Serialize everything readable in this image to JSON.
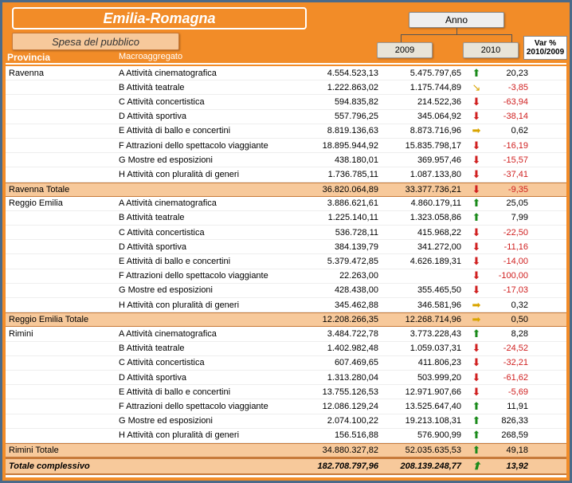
{
  "title": "Emilia-Romagna",
  "subtitle": "Spesa del pubblico",
  "anno_label": "Anno",
  "year1": "2009",
  "year2": "2010",
  "var_hdr1": "Var %",
  "var_hdr2": "2010/2009",
  "hdr_provincia": "Provincia",
  "hdr_macro": "Macroaggregato",
  "colors": {
    "frame_bg": "#f28c28",
    "frame_border": "#4a6a8a",
    "subtotal_bg": "#f7c99b",
    "up": "#1a8a1a",
    "down": "#d02020",
    "flat": "#d9a400"
  },
  "sections": [
    {
      "province": "Ravenna",
      "rows": [
        {
          "macro": "A Attività cinematografica",
          "v1": "4.554.523,13",
          "v2": "5.475.797,65",
          "arrow": "up",
          "var": "20,23"
        },
        {
          "macro": "B Attività teatrale",
          "v1": "1.222.863,02",
          "v2": "1.175.744,89",
          "arrow": "flat-down",
          "var": "-3,85"
        },
        {
          "macro": "C Attività concertistica",
          "v1": "594.835,82",
          "v2": "214.522,36",
          "arrow": "down",
          "var": "-63,94"
        },
        {
          "macro": "D Attività sportiva",
          "v1": "557.796,25",
          "v2": "345.064,92",
          "arrow": "down",
          "var": "-38,14"
        },
        {
          "macro": "E Attività di ballo e concertini",
          "v1": "8.819.136,63",
          "v2": "8.873.716,96",
          "arrow": "flat",
          "var": "0,62"
        },
        {
          "macro": "F Attrazioni dello spettacolo viaggiante",
          "v1": "18.895.944,92",
          "v2": "15.835.798,17",
          "arrow": "down",
          "var": "-16,19"
        },
        {
          "macro": "G Mostre ed esposizioni",
          "v1": "438.180,01",
          "v2": "369.957,46",
          "arrow": "down",
          "var": "-15,57"
        },
        {
          "macro": "H Attività con pluralità di generi",
          "v1": "1.736.785,11",
          "v2": "1.087.133,80",
          "arrow": "down",
          "var": "-37,41"
        }
      ],
      "subtotal": {
        "label": "Ravenna Totale",
        "v1": "36.820.064,89",
        "v2": "33.377.736,21",
        "arrow": "down",
        "var": "-9,35"
      }
    },
    {
      "province": "Reggio Emilia",
      "rows": [
        {
          "macro": "A Attività cinematografica",
          "v1": "3.886.621,61",
          "v2": "4.860.179,11",
          "arrow": "up",
          "var": "25,05"
        },
        {
          "macro": "B Attività teatrale",
          "v1": "1.225.140,11",
          "v2": "1.323.058,86",
          "arrow": "up",
          "var": "7,99"
        },
        {
          "macro": "C Attività concertistica",
          "v1": "536.728,11",
          "v2": "415.968,22",
          "arrow": "down",
          "var": "-22,50"
        },
        {
          "macro": "D Attività sportiva",
          "v1": "384.139,79",
          "v2": "341.272,00",
          "arrow": "down",
          "var": "-11,16"
        },
        {
          "macro": "E Attività di ballo e concertini",
          "v1": "5.379.472,85",
          "v2": "4.626.189,31",
          "arrow": "down",
          "var": "-14,00"
        },
        {
          "macro": "F Attrazioni dello spettacolo viaggiante",
          "v1": "22.263,00",
          "v2": "",
          "arrow": "down",
          "var": "-100,00"
        },
        {
          "macro": "G Mostre ed esposizioni",
          "v1": "428.438,00",
          "v2": "355.465,50",
          "arrow": "down",
          "var": "-17,03"
        },
        {
          "macro": "H Attività con pluralità di generi",
          "v1": "345.462,88",
          "v2": "346.581,96",
          "arrow": "flat",
          "var": "0,32"
        }
      ],
      "subtotal": {
        "label": "Reggio Emilia Totale",
        "v1": "12.208.266,35",
        "v2": "12.268.714,96",
        "arrow": "flat",
        "var": "0,50"
      }
    },
    {
      "province": "Rimini",
      "rows": [
        {
          "macro": "A Attività cinematografica",
          "v1": "3.484.722,78",
          "v2": "3.773.228,43",
          "arrow": "up",
          "var": "8,28"
        },
        {
          "macro": "B Attività teatrale",
          "v1": "1.402.982,48",
          "v2": "1.059.037,31",
          "arrow": "down",
          "var": "-24,52"
        },
        {
          "macro": "C Attività concertistica",
          "v1": "607.469,65",
          "v2": "411.806,23",
          "arrow": "down",
          "var": "-32,21"
        },
        {
          "macro": "D Attività sportiva",
          "v1": "1.313.280,04",
          "v2": "503.999,20",
          "arrow": "down",
          "var": "-61,62"
        },
        {
          "macro": "E Attività di ballo e concertini",
          "v1": "13.755.126,53",
          "v2": "12.971.907,66",
          "arrow": "down",
          "var": "-5,69"
        },
        {
          "macro": "F Attrazioni dello spettacolo viaggiante",
          "v1": "12.086.129,24",
          "v2": "13.525.647,40",
          "arrow": "up",
          "var": "11,91"
        },
        {
          "macro": "G Mostre ed esposizioni",
          "v1": "2.074.100,22",
          "v2": "19.213.108,31",
          "arrow": "up",
          "var": "826,33"
        },
        {
          "macro": "H Attività con pluralità di generi",
          "v1": "156.516,88",
          "v2": "576.900,99",
          "arrow": "up",
          "var": "268,59"
        }
      ],
      "subtotal": {
        "label": "Rimini Totale",
        "v1": "34.880.327,82",
        "v2": "52.035.635,53",
        "arrow": "up",
        "var": "49,18"
      }
    }
  ],
  "grand": {
    "label": "Totale complessivo",
    "v1": "182.708.797,96",
    "v2": "208.139.248,77",
    "arrow": "up",
    "var": "13,92"
  }
}
